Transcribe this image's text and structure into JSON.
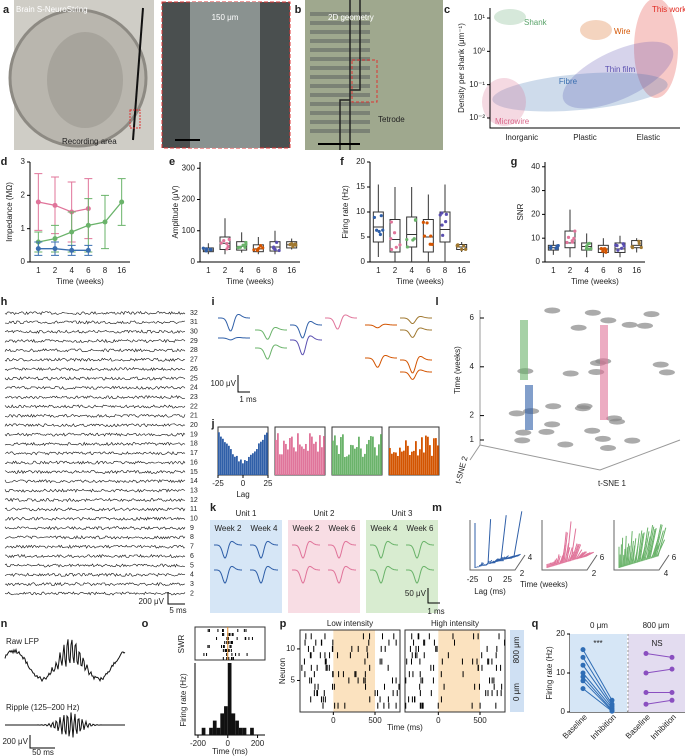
{
  "letters": [
    "a",
    "b",
    "c",
    "d",
    "e",
    "f",
    "g",
    "h",
    "i",
    "j",
    "k",
    "l",
    "m",
    "n",
    "o",
    "p",
    "q"
  ],
  "a": {
    "title": "Brain S-NeuroString",
    "scale_bar": "150 μm",
    "label": "Recording area"
  },
  "b": {
    "label": "2D geometry",
    "annotation": "Tetrode"
  },
  "c": {
    "type": "scatter",
    "y_label": "Density per shank (μm⁻¹)",
    "categories": [
      "Inorganic",
      "Plastic",
      "Elastic"
    ],
    "log_y": true,
    "ylim": [
      0.005,
      20
    ],
    "yticks": [
      {
        "value": 10,
        "label": "10¹"
      },
      {
        "value": 1,
        "label": "10⁰"
      },
      {
        "value": 0.1,
        "label": "10⁻¹"
      },
      {
        "value": 0.01,
        "label": "10⁻²"
      }
    ],
    "groups": [
      {
        "name": "Shank",
        "color": "#5aa36a"
      },
      {
        "name": "Wire",
        "color": "#d35400"
      },
      {
        "name": "This work",
        "color": "#e0281e"
      },
      {
        "name": "Thin film",
        "color": "#5a4fb0"
      },
      {
        "name": "Fibre",
        "color": "#3a6fb0"
      },
      {
        "name": "Microwire",
        "color": "#d9668a"
      }
    ]
  },
  "d": {
    "type": "line",
    "x_label": "Time (weeks)",
    "y_label": "Impedance (MΩ)",
    "categories": [
      "1",
      "2",
      "4",
      "6",
      "8",
      "16"
    ],
    "ylim": [
      0,
      3
    ],
    "yticks": [
      0,
      1,
      2,
      3
    ],
    "series": [
      {
        "color": "#e0749a",
        "values": [
          1.8,
          1.7,
          1.5,
          1.6,
          null,
          null
        ],
        "errors": [
          0.85,
          0.85,
          0.9,
          0.9,
          null,
          null
        ]
      },
      {
        "color": "#6ab36a",
        "values": [
          0.6,
          0.7,
          0.9,
          1.1,
          1.2,
          1.8
        ],
        "errors": [
          0.3,
          0.4,
          0.6,
          0.8,
          0.8,
          0.7
        ]
      },
      {
        "color": "#3a6fb0",
        "values": [
          0.4,
          0.4,
          0.35,
          0.35,
          null,
          null
        ],
        "errors": [
          0.2,
          0.2,
          0.15,
          0.15,
          null,
          null
        ]
      }
    ]
  },
  "e": {
    "type": "box",
    "x_label": "Time (weeks)",
    "y_label": "Amplitude (μV)",
    "categories": [
      "1",
      "2",
      "4",
      "6",
      "8",
      "16"
    ],
    "ylim": [
      0,
      320
    ],
    "yticks": [
      0,
      100,
      200,
      300
    ],
    "colors": [
      "#2f5fa8",
      "#e0749a",
      "#6ab36a",
      "#d35400",
      "#5a4fb0",
      "#a07830"
    ],
    "whisker_low": [
      25,
      25,
      30,
      25,
      25,
      40
    ],
    "q1": [
      33,
      40,
      38,
      33,
      35,
      45
    ],
    "median": [
      38,
      60,
      50,
      42,
      48,
      55
    ],
    "q3": [
      45,
      80,
      65,
      55,
      65,
      65
    ],
    "whisker_high": [
      60,
      140,
      95,
      80,
      100,
      75
    ]
  },
  "f": {
    "type": "box",
    "x_label": "Time (weeks)",
    "y_label": "Firing rate (Hz)",
    "categories": [
      "1",
      "2",
      "4",
      "6",
      "8",
      "16"
    ],
    "ylim": [
      0,
      20
    ],
    "yticks": [
      0,
      5,
      10,
      15,
      20
    ],
    "colors": [
      "#2f5fa8",
      "#e0749a",
      "#6ab36a",
      "#d35400",
      "#5a4fb0",
      "#a07830"
    ],
    "whisker_low": [
      1,
      0,
      0,
      0,
      0,
      2
    ],
    "q1": [
      4,
      2,
      3,
      2,
      4,
      2.5
    ],
    "median": [
      7,
      4.5,
      5.5,
      5,
      6.5,
      3
    ],
    "q3": [
      10,
      8.5,
      9,
      8.5,
      10,
      3.5
    ],
    "whisker_high": [
      15.5,
      15,
      15,
      13.5,
      15.5,
      4
    ]
  },
  "g": {
    "type": "box",
    "x_label": "Time (weeks)",
    "y_label": "SNR",
    "categories": [
      "1",
      "2",
      "4",
      "6",
      "8",
      "16"
    ],
    "ylim": [
      0,
      42
    ],
    "yticks": [
      0,
      10,
      20,
      30,
      40
    ],
    "colors": [
      "#2f5fa8",
      "#e0749a",
      "#6ab36a",
      "#d35400",
      "#5a4fb0",
      "#a07830"
    ],
    "whisker_low": [
      3,
      2,
      2,
      2,
      2,
      4
    ],
    "q1": [
      5,
      6,
      5,
      4,
      4,
      6
    ],
    "median": [
      6,
      8,
      6.5,
      5.5,
      5.5,
      7
    ],
    "q3": [
      7,
      13,
      8,
      7,
      8,
      9
    ],
    "whisker_high": [
      9,
      22,
      12,
      10,
      11,
      10
    ]
  },
  "h": {
    "channels": [
      32,
      31,
      30,
      29,
      28,
      27,
      26,
      25,
      24,
      23,
      22,
      21,
      20,
      19,
      18,
      17,
      16,
      15,
      14,
      13,
      12,
      11,
      10,
      9,
      8,
      7,
      6,
      5,
      4,
      3,
      2
    ],
    "scale_y": "200 μV",
    "scale_x": "5 ms"
  },
  "i": {
    "scale_y": "100 μV",
    "scale_x": "1 ms"
  },
  "j": {
    "xticks": [
      -25,
      0,
      25
    ],
    "x_label": "Lag"
  },
  "k": {
    "units": [
      {
        "name": "Unit 1",
        "weeks": [
          "Week 2",
          "Week 4"
        ]
      },
      {
        "name": "Unit 2",
        "weeks": [
          "Week 2",
          "Week 6"
        ]
      },
      {
        "name": "Unit 3",
        "weeks": [
          "Week 4",
          "Week 6"
        ]
      }
    ],
    "scale_y": "50 μV",
    "scale_x": "1 ms"
  },
  "l": {
    "z_label": "Time (weeks)",
    "zticks": [
      1,
      2,
      4,
      6
    ],
    "y_label": "t-SNE 2",
    "x_label": "t-SNE 1"
  },
  "m": {
    "xticks": [
      -25,
      0,
      25
    ],
    "x_label": "Lag (ms)",
    "time_label": "Time (weeks)",
    "panel_ticks": [
      [
        2,
        4
      ],
      [
        2,
        6
      ],
      [
        4,
        6
      ]
    ]
  },
  "n": {
    "traces": [
      "Raw LFP",
      "Ripple (125–200 Hz)"
    ],
    "scale_y": "200 μV",
    "scale_x": "50 ms"
  },
  "o": {
    "raster_label": "SWR",
    "type": "histogram",
    "y_label": "Firing rate (Hz)",
    "x_label": "Time (ms)",
    "xlim": [
      -220,
      250
    ],
    "xticks": [
      -200,
      0,
      200
    ],
    "ylim": [
      0,
      10
    ],
    "bins": [
      -175,
      -150,
      -125,
      -100,
      -75,
      -50,
      -25,
      0,
      25,
      50,
      75,
      100,
      125,
      150,
      175
    ],
    "counts": [
      1,
      0,
      1,
      2,
      1,
      3,
      4,
      10,
      3,
      2,
      1,
      1,
      0,
      1
    ],
    "color": "#111111"
  },
  "p": {
    "conditions": [
      "Low intensity",
      "High intensity"
    ],
    "y_label": "Neuron",
    "ylim": [
      0,
      13
    ],
    "yticks": [
      5,
      10
    ],
    "xlim": [
      -400,
      800
    ],
    "xticks": [
      0,
      500
    ],
    "x_label": "Time (ms)",
    "depths": [
      "800 μm",
      "0 μm"
    ]
  },
  "q": {
    "headers": [
      "0 μm",
      "800 μm"
    ],
    "y_label": "Firing rate (Hz)",
    "ylim": [
      0,
      20
    ],
    "yticks": [
      0,
      10,
      20
    ],
    "categories": [
      "Baseline",
      "Inhibition",
      "Baseline",
      "Inhibition"
    ],
    "significance": [
      "***",
      "NS"
    ],
    "groups": [
      {
        "color": "#2f6db5",
        "baseline": [
          16,
          14,
          12,
          10,
          9,
          8,
          6
        ],
        "inhibition": [
          3,
          2,
          1.5,
          1,
          0.5,
          0.3,
          0.2
        ]
      },
      {
        "color": "#8a4fc0",
        "baseline": [
          15,
          10,
          5,
          2
        ],
        "inhibition": [
          14,
          11,
          5,
          3
        ]
      }
    ]
  }
}
